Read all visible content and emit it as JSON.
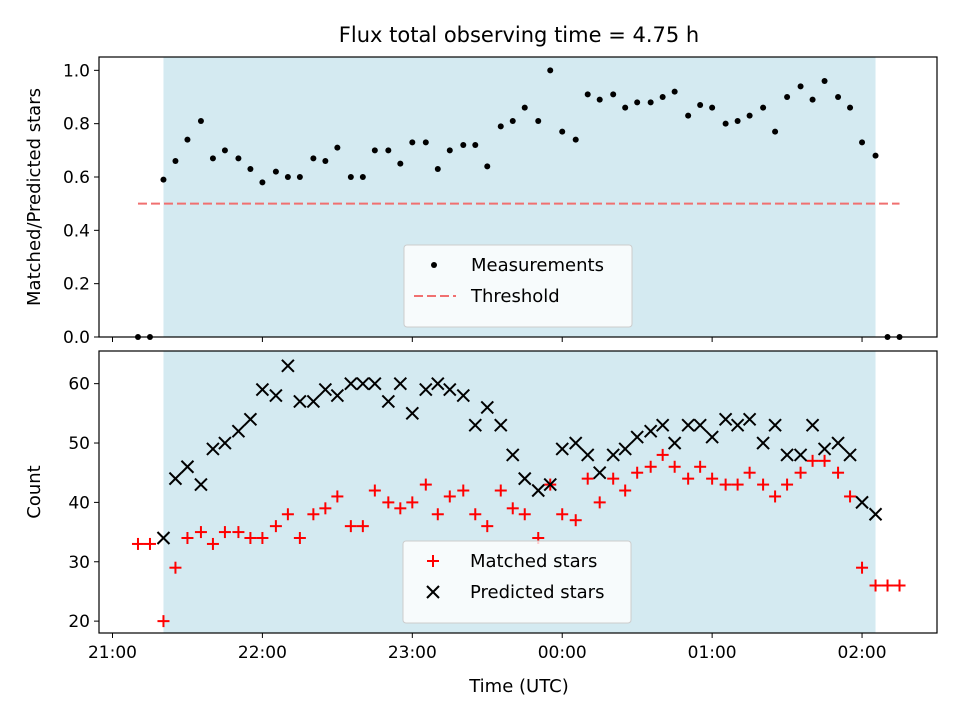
{
  "chart_data": {
    "title": "Flux total observing time = 4.75 h",
    "xlabel": "Time (UTC)",
    "x_tick_labels": [
      "21:00",
      "22:00",
      "23:00",
      "00:00",
      "01:00",
      "02:00"
    ],
    "x_tick_hours": [
      0,
      1,
      2,
      3,
      4,
      5
    ],
    "x_range_hours": [
      -0.09,
      5.5
    ],
    "x_origin": "21:00",
    "observing_window_hours": [
      0.34,
      5.09
    ],
    "observing_window_color": "#d4eaf1",
    "panels": [
      {
        "type": "scatter",
        "ylabel": "Matched/Predicted stars",
        "ylim": [
          0,
          1.05
        ],
        "y_ticks": [
          0.0,
          0.2,
          0.4,
          0.6,
          0.8,
          1.0
        ],
        "y_tick_labels": [
          "0.0",
          "0.2",
          "0.4",
          "0.6",
          "0.8",
          "1.0"
        ],
        "legend_position": "lower-center",
        "series": [
          {
            "name": "Measurements",
            "marker": "dot",
            "color": "#000000",
            "x": [
              0.17,
              0.25,
              0.34,
              0.42,
              0.5,
              0.59,
              0.67,
              0.75,
              0.84,
              0.92,
              1.0,
              1.09,
              1.17,
              1.25,
              1.34,
              1.42,
              1.5,
              1.59,
              1.67,
              1.75,
              1.84,
              1.92,
              2.0,
              2.09,
              2.17,
              2.25,
              2.34,
              2.42,
              2.5,
              2.59,
              2.67,
              2.75,
              2.84,
              2.92,
              3.0,
              3.09,
              3.17,
              3.25,
              3.34,
              3.42,
              3.5,
              3.59,
              3.67,
              3.75,
              3.84,
              3.92,
              4.0,
              4.09,
              4.17,
              4.25,
              4.34,
              4.42,
              4.5,
              4.59,
              4.67,
              4.75,
              4.84,
              4.92,
              5.0,
              5.09,
              5.17,
              5.25
            ],
            "y": [
              0.0,
              0.0,
              0.59,
              0.66,
              0.74,
              0.81,
              0.67,
              0.7,
              0.67,
              0.63,
              0.58,
              0.62,
              0.6,
              0.6,
              0.67,
              0.66,
              0.71,
              0.6,
              0.6,
              0.7,
              0.7,
              0.65,
              0.73,
              0.73,
              0.63,
              0.7,
              0.72,
              0.72,
              0.64,
              0.79,
              0.81,
              0.86,
              0.81,
              1.0,
              0.77,
              0.74,
              0.91,
              0.89,
              0.91,
              0.86,
              0.88,
              0.88,
              0.9,
              0.92,
              0.83,
              0.87,
              0.86,
              0.8,
              0.81,
              0.83,
              0.86,
              0.77,
              0.9,
              0.94,
              0.89,
              0.96,
              0.9,
              0.86,
              0.73,
              0.68,
              0.0,
              0.0
            ]
          },
          {
            "name": "Threshold",
            "type": "line",
            "style": "dashed",
            "color": "#f07070",
            "x": [
              0.17,
              5.25
            ],
            "y": [
              0.5,
              0.5
            ]
          }
        ]
      },
      {
        "type": "scatter",
        "ylabel": "Count",
        "ylim": [
          18,
          65.5
        ],
        "y_ticks": [
          20,
          30,
          40,
          50,
          60
        ],
        "y_tick_labels": [
          "20",
          "30",
          "40",
          "50",
          "60"
        ],
        "legend_position": "lower-center",
        "series": [
          {
            "name": "Matched stars",
            "marker": "plus",
            "color": "#ff0000",
            "x": [
              0.17,
              0.25,
              0.34,
              0.42,
              0.5,
              0.59,
              0.67,
              0.75,
              0.84,
              0.92,
              1.0,
              1.09,
              1.17,
              1.25,
              1.34,
              1.42,
              1.5,
              1.59,
              1.67,
              1.75,
              1.84,
              1.92,
              2.0,
              2.09,
              2.17,
              2.25,
              2.34,
              2.42,
              2.5,
              2.59,
              2.67,
              2.75,
              2.84,
              2.92,
              3.0,
              3.09,
              3.17,
              3.25,
              3.34,
              3.42,
              3.5,
              3.59,
              3.67,
              3.75,
              3.84,
              3.92,
              4.0,
              4.09,
              4.17,
              4.25,
              4.34,
              4.42,
              4.5,
              4.59,
              4.67,
              4.75,
              4.84,
              4.92,
              5.0,
              5.09,
              5.17,
              5.25
            ],
            "y": [
              33,
              33,
              20,
              29,
              34,
              35,
              33,
              35,
              35,
              34,
              34,
              36,
              38,
              34,
              38,
              39,
              41,
              36,
              36,
              42,
              40,
              39,
              40,
              43,
              38,
              41,
              42,
              38,
              36,
              42,
              39,
              38,
              34,
              43,
              38,
              37,
              44,
              40,
              44,
              42,
              45,
              46,
              48,
              46,
              44,
              46,
              44,
              43,
              43,
              45,
              43,
              41,
              43,
              45,
              47,
              47,
              45,
              41,
              29,
              26,
              26,
              26
            ]
          },
          {
            "name": "Predicted stars",
            "marker": "x",
            "color": "#000000",
            "x": [
              0.34,
              0.42,
              0.5,
              0.59,
              0.67,
              0.75,
              0.84,
              0.92,
              1.0,
              1.09,
              1.17,
              1.25,
              1.34,
              1.42,
              1.5,
              1.59,
              1.67,
              1.75,
              1.84,
              1.92,
              2.0,
              2.09,
              2.17,
              2.25,
              2.34,
              2.42,
              2.5,
              2.59,
              2.67,
              2.75,
              2.84,
              2.92,
              3.0,
              3.09,
              3.17,
              3.25,
              3.34,
              3.42,
              3.5,
              3.59,
              3.67,
              3.75,
              3.84,
              3.92,
              4.0,
              4.09,
              4.17,
              4.25,
              4.34,
              4.42,
              4.5,
              4.59,
              4.67,
              4.75,
              4.84,
              4.92,
              5.0,
              5.09
            ],
            "y": [
              34,
              44,
              46,
              43,
              49,
              50,
              52,
              54,
              59,
              58,
              63,
              57,
              57,
              59,
              58,
              60,
              60,
              60,
              57,
              60,
              55,
              59,
              60,
              59,
              58,
              53,
              56,
              53,
              48,
              44,
              42,
              43,
              49,
              50,
              48,
              45,
              48,
              49,
              51,
              52,
              53,
              50,
              53,
              53,
              51,
              54,
              53,
              54,
              50,
              53,
              48,
              48,
              53,
              49,
              50,
              48,
              40,
              38
            ]
          }
        ]
      }
    ]
  }
}
